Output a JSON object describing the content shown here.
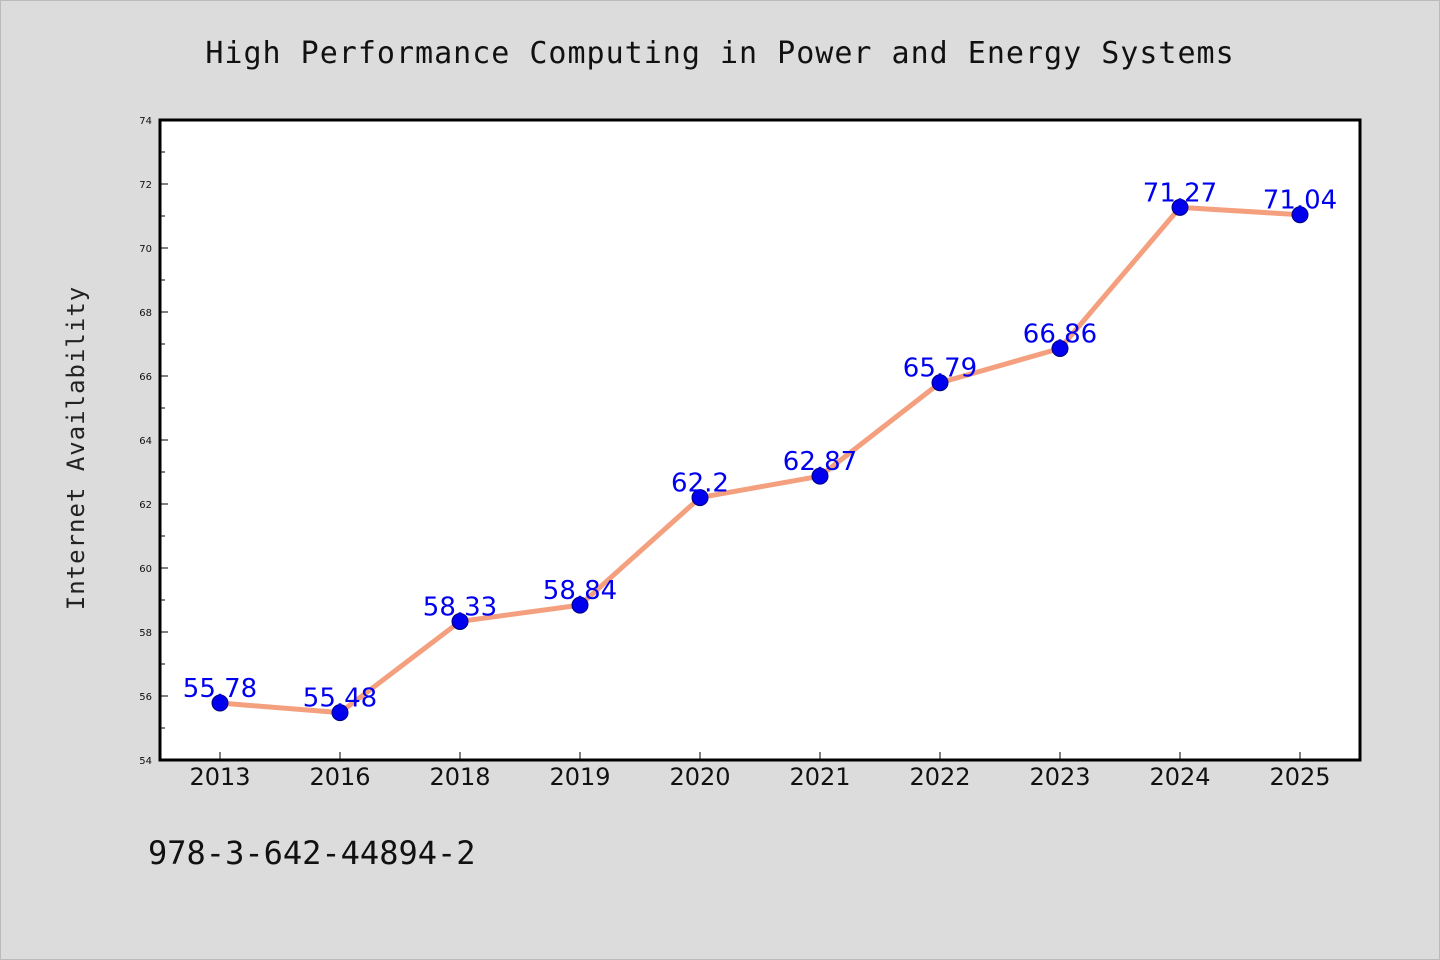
{
  "footer": {
    "isbn": "978-3-642-44894-2"
  },
  "colors": {
    "background": "#dcdcdc",
    "plot_background": "#ffffff",
    "line": "#f4a07e",
    "marker": "#0000ee",
    "data_label": "#0000ee"
  },
  "chart_data": {
    "type": "line",
    "title": "High Performance Computing in Power and Energy Systems",
    "xlabel": "",
    "ylabel": "Internet Availability",
    "categories": [
      "2013",
      "2016",
      "2018",
      "2019",
      "2020",
      "2021",
      "2022",
      "2023",
      "2024",
      "2025"
    ],
    "series": [
      {
        "values": [
          55.78,
          55.48,
          58.33,
          58.84,
          62.2,
          62.87,
          65.79,
          66.86,
          71.27,
          71.04
        ],
        "labels": [
          "55.78",
          "55.48",
          "58.33",
          "58.84",
          "62.2",
          "62.87",
          "65.79",
          "66.86",
          "71.27",
          "71.04"
        ]
      }
    ],
    "ylim": [
      54,
      74
    ],
    "yticks": [
      "54",
      "56",
      "58",
      "60",
      "62",
      "64",
      "66",
      "68",
      "70",
      "72",
      "74"
    ],
    "grid": false,
    "legend": "none",
    "data_labels": true
  }
}
